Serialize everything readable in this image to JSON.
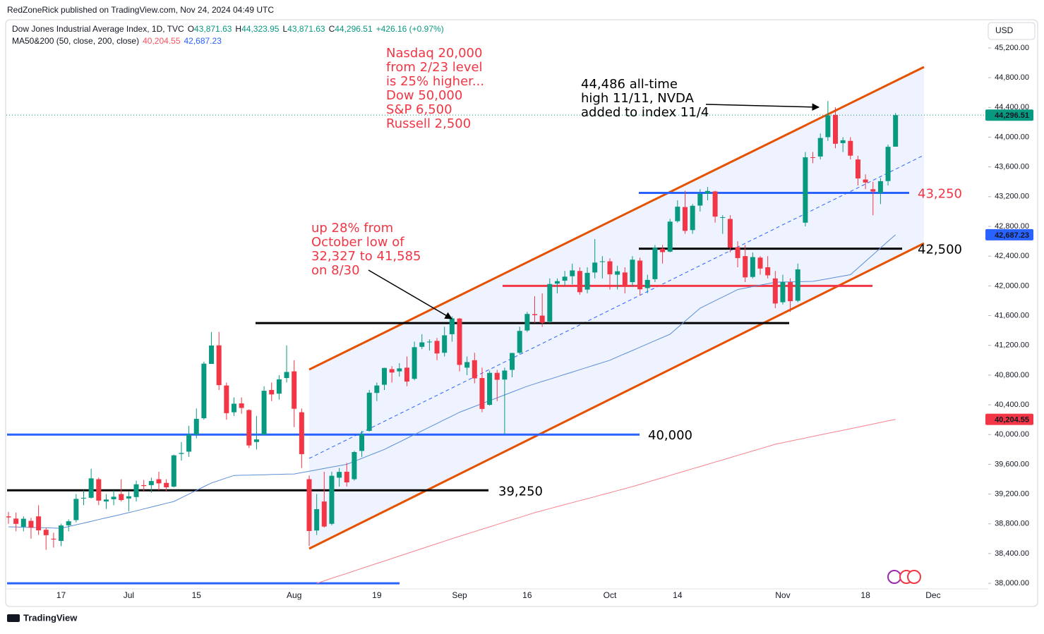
{
  "header": {
    "publisher": "RedZoneRick published on TradingView.com, Nov 24, 2024 04:49 UTC",
    "footer": "TradingView"
  },
  "chart_data": {
    "type": "candlestick",
    "currency": "USD",
    "legend": [
      {
        "text": "Dow Jones Industrial Average Index, 1D, TVC",
        "color": "#131722"
      },
      {
        "text": "O",
        "color": "#131722"
      },
      {
        "text": "43,871.63",
        "color": "#089981"
      },
      {
        "text": "H",
        "color": "#131722"
      },
      {
        "text": "44,323.95",
        "color": "#089981"
      },
      {
        "text": "L",
        "color": "#131722"
      },
      {
        "text": "43,871.63",
        "color": "#089981"
      },
      {
        "text": "C",
        "color": "#131722"
      },
      {
        "text": "44,296.51",
        "color": "#089981"
      },
      {
        "text": "+426.16 (+0.97%)",
        "color": "#089981"
      }
    ],
    "indicator_legend": [
      {
        "text": "MA50&200 (50, close, 200, close)",
        "color": "#131722"
      },
      {
        "text": "40,204.55",
        "color": "#f7525f"
      },
      {
        "text": "42,687.23",
        "color": "#2962ff"
      }
    ],
    "categories": [
      null,
      null,
      null,
      null,
      null,
      null,
      null,
      "17",
      null,
      null,
      null,
      null,
      null,
      null,
      null,
      null,
      "Jul",
      null,
      null,
      null,
      null,
      null,
      null,
      null,
      null,
      "15",
      null,
      null,
      null,
      null,
      null,
      null,
      null,
      null,
      null,
      null,
      null,
      null,
      "Aug",
      null,
      null,
      null,
      null,
      null,
      null,
      null,
      null,
      null,
      null,
      "19",
      null,
      null,
      null,
      null,
      null,
      null,
      null,
      null,
      null,
      null,
      "Sep",
      null,
      null,
      null,
      null,
      null,
      null,
      null,
      null,
      "16",
      null,
      null,
      null,
      null,
      null,
      null,
      null,
      null,
      null,
      null,
      "Oct",
      null,
      null,
      null,
      null,
      null,
      null,
      null,
      null,
      "14",
      null,
      null,
      null,
      null,
      null,
      null,
      null,
      null,
      null,
      null,
      null,
      null,
      null,
      "Nov",
      null,
      null,
      null,
      null,
      null,
      null,
      null,
      null,
      null,
      null,
      "18",
      null,
      null,
      null,
      null,
      null,
      null,
      null,
      null,
      "Dec"
    ],
    "up_color": "#089981",
    "down_color": "#f23645",
    "ohlc": {
      "open": [
        38900,
        38870,
        38760,
        38840,
        38900,
        38720,
        38600,
        38570,
        38780,
        38850,
        39140,
        39150,
        39400,
        39100,
        39130,
        39200,
        39140,
        39160,
        39320,
        39320,
        39400,
        39350,
        39300,
        39740,
        39770,
        40000,
        40220,
        40950,
        41200,
        40660,
        40300,
        40420,
        40330,
        39900,
        40000,
        40600,
        40550,
        40760,
        40850,
        40300,
        39400,
        38710,
        39100,
        38800,
        39420,
        39500,
        39400,
        39780,
        40050,
        40560,
        40670,
        40880,
        40850,
        40900,
        40750,
        41180,
        41250,
        41260,
        41100,
        41350,
        41560,
        40900,
        41000,
        40760,
        40400,
        40830,
        40740,
        40870,
        41100,
        41400,
        41620,
        41600,
        41520,
        42030,
        42070,
        42130,
        42200,
        41950,
        42180,
        42320,
        42330,
        42150,
        42180,
        42050,
        42340,
        41970,
        42090,
        42500,
        42460,
        42870,
        43060,
        42750,
        43080,
        43240,
        43270,
        42920,
        42900,
        42520,
        42400,
        42120,
        42380,
        42250,
        42100,
        41780,
        42050,
        41800,
        42850,
        43730,
        43740,
        44000,
        44300,
        43920,
        43950,
        43700,
        43430,
        43300,
        43250,
        43410,
        43871.63,
        null,
        null,
        null,
        null,
        null
      ],
      "high": [
        38960,
        38950,
        38900,
        38880,
        39050,
        38750,
        38680,
        38800,
        38860,
        39200,
        39250,
        39540,
        39420,
        39200,
        39250,
        39400,
        39230,
        39380,
        39390,
        39420,
        39500,
        39400,
        39730,
        39900,
        40120,
        40350,
        40980,
        41380,
        41380,
        40700,
        40500,
        40500,
        40340,
        40250,
        40650,
        40700,
        40800,
        41200,
        41000,
        40350,
        39450,
        39200,
        39500,
        39500,
        39550,
        39620,
        39780,
        40050,
        40600,
        40700,
        40900,
        40920,
        40960,
        41050,
        41250,
        41350,
        41280,
        41300,
        41450,
        41590,
        41570,
        41050,
        41100,
        40900,
        40860,
        40870,
        40900,
        41100,
        41450,
        41650,
        41860,
        41900,
        42100,
        42100,
        42200,
        42300,
        42250,
        42250,
        42630,
        42400,
        42370,
        42270,
        42250,
        42400,
        42380,
        42150,
        42550,
        42550,
        42900,
        43150,
        43280,
        43100,
        43300,
        43330,
        43280,
        42950,
        42950,
        42600,
        42550,
        42450,
        42400,
        42400,
        42200,
        42150,
        42100,
        42300,
        43800,
        43800,
        44050,
        44486,
        44400,
        44000,
        44000,
        43750,
        43500,
        43400,
        43450,
        43900,
        44323.95,
        null,
        null,
        null,
        null,
        null
      ],
      "low": [
        38800,
        38700,
        38700,
        38600,
        38650,
        38450,
        38480,
        38500,
        38700,
        38820,
        39050,
        39140,
        39050,
        39000,
        39050,
        39100,
        38970,
        39100,
        39230,
        39220,
        39250,
        39230,
        39290,
        39650,
        39700,
        39950,
        40200,
        40950,
        40600,
        40200,
        40250,
        40280,
        39820,
        39800,
        39990,
        40450,
        40470,
        40700,
        40100,
        39550,
        38500,
        38650,
        38750,
        38780,
        39300,
        39300,
        39380,
        39700,
        40040,
        40450,
        40600,
        40700,
        40780,
        40650,
        40730,
        41150,
        41130,
        41000,
        41050,
        41250,
        40850,
        40800,
        40690,
        40300,
        40390,
        40450,
        40000,
        40770,
        41080,
        41380,
        41500,
        41450,
        41500,
        41900,
        42000,
        42020,
        41880,
        41900,
        42100,
        42100,
        41950,
        41950,
        41900,
        41990,
        41870,
        41900,
        42050,
        42300,
        42450,
        42850,
        42700,
        42700,
        43000,
        43150,
        42850,
        42700,
        42450,
        42250,
        42050,
        42100,
        42150,
        42100,
        41700,
        41750,
        41650,
        41780,
        42800,
        43650,
        43700,
        43950,
        43850,
        43800,
        43700,
        43350,
        43300,
        42950,
        43100,
        43350,
        43871.63,
        null,
        null,
        null,
        null,
        null
      ],
      "close": [
        38886,
        38799,
        38868,
        38747,
        38712,
        38647,
        38589,
        38778,
        38834,
        39135,
        39150,
        39411,
        39112,
        39127,
        39164,
        39119,
        39170,
        39331,
        39308,
        39375,
        39344,
        39291,
        39721,
        39753,
        40001,
        40212,
        40954,
        41198,
        40665,
        40288,
        40415,
        40358,
        39854,
        39935,
        40589,
        40540,
        40743,
        40842,
        40347,
        39737,
        38703,
        38997,
        38763,
        39446,
        39498,
        39357,
        39765,
        40008,
        40563,
        40660,
        40896,
        40834,
        40890,
        40713,
        41175,
        41240,
        41250,
        41091,
        41335,
        41563,
        40937,
        40975,
        40756,
        40345,
        40830,
        40737,
        40861,
        41097,
        41394,
        41622,
        41606,
        41504,
        42025,
        42063,
        42124,
        42208,
        41915,
        42175,
        42313,
        42330,
        42156,
        42196,
        42012,
        42352,
        41954,
        42080,
        42512,
        42454,
        42864,
        43065,
        42740,
        43077,
        43239,
        43276,
        42931,
        42924,
        42514,
        42374,
        42114,
        42387,
        42233,
        42142,
        41763,
        42052,
        41794,
        42222,
        43729,
        43729,
        43989,
        44293,
        43911,
        43958,
        43751,
        43445,
        43390,
        43269,
        43408,
        43870,
        44296.51,
        null,
        null,
        null,
        null,
        null
      ]
    },
    "lines": [
      {
        "color": "#5b8fd6",
        "values": [
          38760,
          38757,
          38754,
          38751,
          38749,
          38746,
          38743,
          38740,
          38763,
          38787,
          38810,
          38833,
          38857,
          38880,
          38903,
          38927,
          38950,
          38975,
          39000,
          39025,
          39050,
          39075,
          39100,
          39150,
          39200,
          39250,
          39300,
          39350,
          39383,
          39417,
          39450,
          39453,
          39455,
          39458,
          39460,
          39463,
          39465,
          39468,
          39470,
          39489,
          39507,
          39526,
          39544,
          39563,
          39581,
          39600,
          39640,
          39680,
          39720,
          39760,
          39800,
          39850,
          39900,
          39950,
          40000,
          40050,
          40100,
          40150,
          40200,
          40250,
          40300,
          40339,
          40378,
          40417,
          40456,
          40494,
          40533,
          40572,
          40611,
          40650,
          40682,
          40714,
          40745,
          40777,
          40809,
          40841,
          40873,
          40905,
          40936,
          40968,
          41000,
          41044,
          41088,
          41131,
          41175,
          41219,
          41263,
          41306,
          41350,
          41438,
          41525,
          41613,
          41700,
          41750,
          41800,
          41850,
          41900,
          41950,
          41970,
          41990,
          42010,
          42030,
          42050,
          42052,
          42054,
          42056,
          42058,
          42060,
          42078,
          42096,
          42114,
          42132,
          42150,
          42240,
          42330,
          42420,
          42510,
          42600,
          42687.23,
          null,
          null,
          null,
          null,
          null
        ]
      },
      {
        "color": "#f7828e",
        "values": [
          null,
          null,
          null,
          null,
          null,
          null,
          null,
          null,
          null,
          null,
          null,
          null,
          null,
          null,
          null,
          null,
          null,
          null,
          null,
          null,
          null,
          null,
          null,
          null,
          null,
          null,
          null,
          null,
          null,
          null,
          null,
          null,
          null,
          null,
          null,
          null,
          null,
          null,
          null,
          null,
          null,
          38000,
          38033,
          38067,
          38100,
          38133,
          38167,
          38200,
          38233,
          38267,
          38300,
          38333,
          38367,
          38400,
          38433,
          38467,
          38500,
          38533,
          38567,
          38600,
          38632,
          38664,
          38695,
          38727,
          38759,
          38791,
          38823,
          38855,
          38886,
          38918,
          38950,
          38977,
          39004,
          39031,
          39058,
          39085,
          39112,
          39138,
          39165,
          39192,
          39219,
          39246,
          39273,
          39300,
          39330,
          39360,
          39390,
          39420,
          39450,
          39480,
          39510,
          39540,
          39570,
          39600,
          39630,
          39660,
          39690,
          39720,
          39750,
          39780,
          39810,
          39840,
          39870,
          39891,
          39912,
          39933,
          39954,
          39975,
          39996,
          40017,
          40038,
          40058,
          40079,
          40100,
          40121,
          40142,
          40163,
          40184,
          40204.55,
          null,
          null,
          null,
          null,
          null
        ]
      }
    ],
    "price_labels": [
      {
        "value": 44296.51,
        "label": "44,296.51",
        "color": "#089981"
      },
      {
        "value": 42687.23,
        "label": "42,687.23",
        "color": "#2962ff"
      },
      {
        "value": 40204.55,
        "label": "40,204.55",
        "color": "#f23645"
      }
    ],
    "ylim": [
      37925,
      45560
    ],
    "yticks": [
      {
        "value": 38000,
        "label": "38,000.00"
      },
      {
        "value": 38400,
        "label": "38,400.00"
      },
      {
        "value": 38800,
        "label": "38,800.00"
      },
      {
        "value": 39200,
        "label": "39,200.00"
      },
      {
        "value": 39600,
        "label": "39,600.00"
      },
      {
        "value": 40000,
        "label": "40,000.00"
      },
      {
        "value": 40400,
        "label": "40,400.00"
      },
      {
        "value": 40800,
        "label": "40,800.00"
      },
      {
        "value": 41200,
        "label": "41,200.00"
      },
      {
        "value": 41600,
        "label": "41,600.00"
      },
      {
        "value": 42000,
        "label": "42,000.00"
      },
      {
        "value": 42400,
        "label": "42,400.00"
      },
      {
        "value": 42800,
        "label": "42,800.00"
      },
      {
        "value": 43200,
        "label": "43,200.00"
      },
      {
        "value": 43600,
        "label": "43,600.00"
      },
      {
        "value": 44000,
        "label": "44,000.00"
      },
      {
        "value": 44400,
        "label": "44,400.00"
      },
      {
        "value": 44800,
        "label": "44,800.00"
      },
      {
        "value": 45200,
        "label": "45,200.00"
      }
    ],
    "grid": false,
    "levels": [
      {
        "value": 43250,
        "label": "43,250",
        "color": "#2962ff",
        "label_color": "#f23645"
      },
      {
        "value": 42500,
        "label": "42,500",
        "color": "#000000",
        "label_color": "#000000"
      },
      {
        "value": 42000,
        "color": "#f23645"
      },
      {
        "value": 41500,
        "color": "#000000"
      },
      {
        "value": 40000,
        "label": "40,000",
        "color": "#2962ff",
        "label_color": "#000000"
      },
      {
        "value": 39250,
        "label": "39,250",
        "color": "#000000",
        "label_color": "#000000"
      },
      {
        "value": 38000,
        "color": "#2962ff"
      }
    ],
    "annotations": [
      {
        "lines": [
          "Nasdaq 20,000",
          "from 2/23 level",
          "is 25% higher...",
          "Dow 50,000",
          "S&P 6,500",
          "Russell 2,500"
        ],
        "color": "#f23645"
      },
      {
        "lines": [
          "44,486 all-time",
          "high 11/11, NVDA",
          "added to index 11/4"
        ],
        "color": "#000000"
      },
      {
        "lines": [
          "up 28% from",
          "October low of",
          "32,327 to 41,585",
          "on 8/30"
        ],
        "color": "#f23645"
      }
    ]
  }
}
